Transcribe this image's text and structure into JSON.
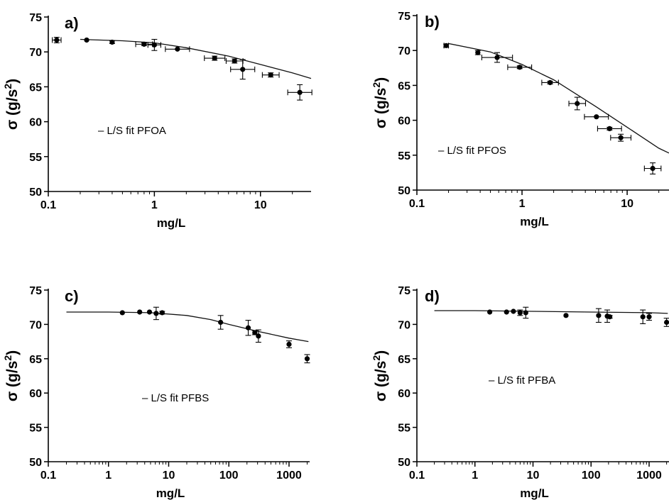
{
  "chart_data": [
    {
      "type": "scatter",
      "panel_label": "a)",
      "xlabel": "mg/L",
      "ylabel": "σ (g/s",
      "ylabel_sup": "2",
      "ylabel_end": ")",
      "x_scale": "log",
      "xlim": [
        0.1,
        30
      ],
      "ylim": [
        50,
        75
      ],
      "x_ticks": [
        0.1,
        1,
        10
      ],
      "x_tick_labels": [
        "0.1",
        "1",
        "10"
      ],
      "y_ticks": [
        50,
        55,
        60,
        65,
        70,
        75
      ],
      "y_tick_labels": [
        "50",
        "55",
        "60",
        "65",
        "70",
        "75"
      ],
      "legend": "– L/S  fit PFOA",
      "fit": {
        "x": [
          0.2,
          0.5,
          1,
          2,
          5,
          10,
          20,
          30
        ],
        "y": [
          71.8,
          71.6,
          71.3,
          70.6,
          69.4,
          68.2,
          67,
          66.2
        ]
      },
      "series": [
        {
          "x": [
            0.12,
            0.23,
            0.4,
            0.8,
            1.0,
            1.65,
            3.7,
            5.7,
            6.8,
            12.5,
            23.5
          ],
          "y": [
            71.7,
            71.7,
            71.4,
            71.1,
            71.0,
            70.4,
            69.1,
            68.7,
            67.5,
            66.7,
            64.2
          ],
          "yerr": [
            0.4,
            0.1,
            0.2,
            0.2,
            0.8,
            0.1,
            0.3,
            0.3,
            1.4,
            0.3,
            1.1
          ],
          "xerr_factor": [
            1.1,
            1.0,
            1.0,
            1.2,
            1.15,
            1.3,
            1.25,
            1.2,
            1.3,
            1.2,
            1.3
          ]
        }
      ]
    },
    {
      "type": "scatter",
      "panel_label": "b)",
      "xlabel": "mg/L",
      "ylabel": "σ (g/s",
      "ylabel_sup": "2",
      "ylabel_end": ")",
      "x_scale": "log",
      "xlim": [
        0.1,
        25
      ],
      "ylim": [
        50,
        75
      ],
      "x_ticks": [
        0.1,
        1,
        10
      ],
      "x_tick_labels": [
        "0.1",
        "1",
        "10"
      ],
      "y_ticks": [
        50,
        55,
        60,
        65,
        70,
        75
      ],
      "y_tick_labels": [
        "50",
        "55",
        "60",
        "65",
        "70",
        "75"
      ],
      "legend": "– L/S  fit PFOS",
      "fit": {
        "x": [
          0.2,
          0.5,
          1,
          2,
          5,
          10,
          20,
          25
        ],
        "y": [
          71,
          69.8,
          68,
          65.8,
          62,
          59,
          56,
          55.3
        ]
      },
      "series": [
        {
          "x": [
            0.19,
            0.38,
            0.58,
            0.95,
            1.85,
            3.35,
            5.1,
            6.8,
            8.7,
            17.5
          ],
          "y": [
            70.7,
            69.7,
            69.0,
            67.6,
            65.4,
            62.4,
            60.5,
            58.8,
            57.5,
            53.1
          ],
          "yerr": [
            0.2,
            0.3,
            0.7,
            0.2,
            0.2,
            0.9,
            0.1,
            0.2,
            0.5,
            0.8
          ],
          "xerr_factor": [
            1.05,
            1.0,
            1.4,
            1.3,
            1.2,
            1.2,
            1.3,
            1.3,
            1.25,
            1.2
          ]
        }
      ]
    },
    {
      "type": "scatter",
      "panel_label": "c)",
      "xlabel": "mg/L",
      "ylabel": "σ (g/s",
      "ylabel_sup": "2",
      "ylabel_end": ")",
      "x_scale": "log",
      "xlim": [
        0.1,
        2200
      ],
      "ylim": [
        50,
        75
      ],
      "x_ticks": [
        0.1,
        1,
        10,
        100,
        1000
      ],
      "x_tick_labels": [
        "0.1",
        "1",
        "10",
        "100",
        "1000"
      ],
      "y_ticks": [
        50,
        55,
        60,
        65,
        70,
        75
      ],
      "y_tick_labels": [
        "50",
        "55",
        "60",
        "65",
        "70",
        "75"
      ],
      "legend": "– L/S fit PFBS",
      "fit": {
        "x": [
          0.2,
          1,
          5,
          20,
          50,
          100,
          300,
          1000,
          2100
        ],
        "y": [
          71.8,
          71.8,
          71.7,
          71.3,
          70.7,
          70.0,
          69.0,
          68.0,
          67.5
        ]
      },
      "series": [
        {
          "x": [
            1.7,
            3.3,
            4.8,
            6.2,
            7.8,
            73,
            210,
            270,
            310,
            1000,
            2000
          ],
          "y": [
            71.7,
            71.8,
            71.8,
            71.6,
            71.7,
            70.3,
            69.5,
            68.8,
            68.3,
            67.1,
            65.0
          ],
          "yerr": [
            0.1,
            0.1,
            0.1,
            0.9,
            0.2,
            1.0,
            1.1,
            0.3,
            0.9,
            0.5,
            0.6
          ],
          "xerr_factor": [
            1.0,
            1.0,
            1.0,
            1.0,
            1.0,
            1.0,
            1.0,
            1.0,
            1.0,
            1.0,
            1.0
          ]
        }
      ]
    },
    {
      "type": "scatter",
      "panel_label": "d)",
      "xlabel": "mg/L",
      "ylabel": "σ (g/s",
      "ylabel_sup": "2",
      "ylabel_end": ")",
      "x_scale": "log",
      "xlim": [
        0.1,
        2200
      ],
      "ylim": [
        50,
        75
      ],
      "x_ticks": [
        0.1,
        1,
        10,
        100,
        1000
      ],
      "x_tick_labels": [
        "0.1",
        "1",
        "10",
        "100",
        "1000"
      ],
      "y_ticks": [
        50,
        55,
        60,
        65,
        70,
        75
      ],
      "y_tick_labels": [
        "50",
        "55",
        "60",
        "65",
        "70",
        "75"
      ],
      "legend": "– L/S  fit PFBA",
      "fit": {
        "x": [
          0.2,
          1,
          10,
          100,
          1000,
          2100
        ],
        "y": [
          72.0,
          72.0,
          71.9,
          71.8,
          71.7,
          71.6
        ]
      },
      "series": [
        {
          "x": [
            1.8,
            3.5,
            4.6,
            6.0,
            7.5,
            37,
            135,
            190,
            210,
            780,
            1000,
            2000
          ],
          "y": [
            71.8,
            71.8,
            71.9,
            71.7,
            71.7,
            71.3,
            71.3,
            71.2,
            71.1,
            71.1,
            71.1,
            70.3
          ],
          "yerr": [
            0.1,
            0.1,
            0.1,
            0.4,
            0.8,
            0.1,
            1.0,
            0.9,
            0.2,
            1.0,
            0.5,
            0.6
          ],
          "xerr_factor": [
            1.0,
            1.0,
            1.0,
            1.0,
            1.0,
            1.0,
            1.0,
            1.0,
            1.0,
            1.0,
            1.0,
            1.0
          ]
        }
      ]
    }
  ]
}
